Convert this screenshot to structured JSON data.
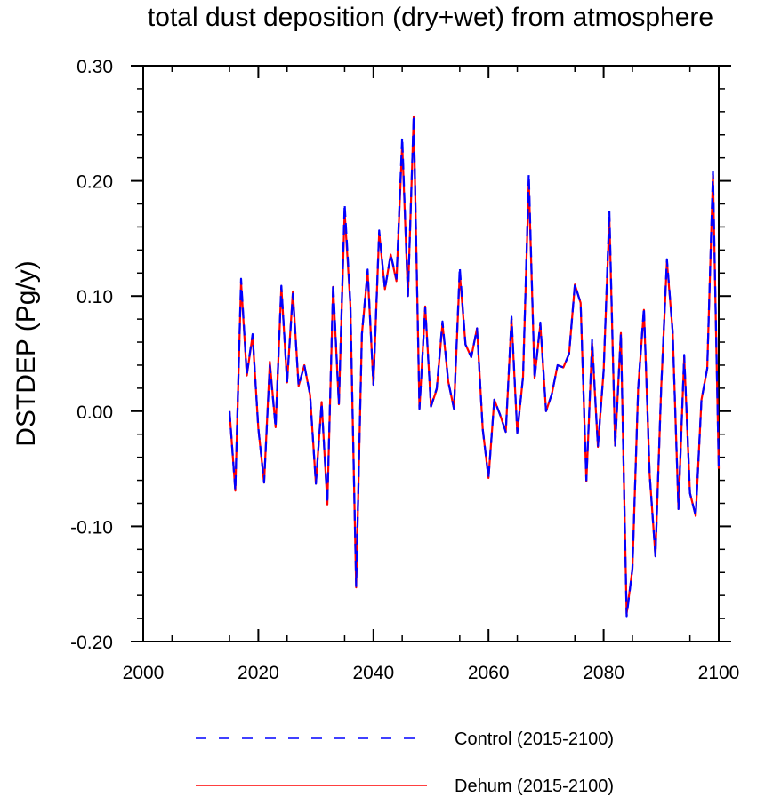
{
  "chart_data": {
    "type": "line",
    "title": "total dust deposition (dry+wet) from atmosphere",
    "xlabel": "",
    "ylabel": "DSTDEP  (Pg/y)",
    "xlim": [
      2000,
      2100
    ],
    "ylim": [
      -0.2,
      0.3
    ],
    "x_ticks": [
      2000,
      2020,
      2040,
      2060,
      2080,
      2100
    ],
    "x_tick_labels": [
      "2000",
      "2020",
      "2040",
      "2060",
      "2080",
      "2100"
    ],
    "y_ticks": [
      -0.2,
      -0.1,
      0.0,
      0.1,
      0.2,
      0.3
    ],
    "y_tick_labels": [
      "-0.20",
      "-0.10",
      "0.00",
      "0.10",
      "0.20",
      "0.30"
    ],
    "grid": false,
    "legend_position": "bottom",
    "x": [
      2015,
      2016,
      2017,
      2018,
      2019,
      2020,
      2021,
      2022,
      2023,
      2024,
      2025,
      2026,
      2027,
      2028,
      2029,
      2030,
      2031,
      2032,
      2033,
      2034,
      2035,
      2036,
      2037,
      2038,
      2039,
      2040,
      2041,
      2042,
      2043,
      2044,
      2045,
      2046,
      2047,
      2048,
      2049,
      2050,
      2051,
      2052,
      2053,
      2054,
      2055,
      2056,
      2057,
      2058,
      2059,
      2060,
      2061,
      2062,
      2063,
      2064,
      2065,
      2066,
      2067,
      2068,
      2069,
      2070,
      2071,
      2072,
      2073,
      2074,
      2075,
      2076,
      2077,
      2078,
      2079,
      2080,
      2081,
      2082,
      2083,
      2084,
      2085,
      2086,
      2087,
      2088,
      2089,
      2090,
      2091,
      2092,
      2093,
      2094,
      2095,
      2096,
      2097,
      2098,
      2099,
      2100
    ],
    "series": [
      {
        "name": "Control (2015-2100)",
        "color": "#0000ff",
        "dash": "dashed",
        "values": [
          0.0,
          -0.069,
          0.115,
          0.032,
          0.067,
          -0.015,
          -0.062,
          0.04,
          -0.014,
          0.109,
          0.025,
          0.102,
          0.022,
          0.04,
          0.014,
          -0.063,
          0.007,
          -0.08,
          0.111,
          0.006,
          0.18,
          0.094,
          -0.152,
          0.067,
          0.123,
          0.023,
          0.157,
          0.106,
          0.136,
          0.115,
          0.238,
          0.1,
          0.257,
          0.002,
          0.09,
          0.004,
          0.02,
          0.078,
          0.026,
          0.002,
          0.125,
          0.058,
          0.047,
          0.072,
          -0.016,
          -0.058,
          0.01,
          -0.003,
          -0.018,
          0.082,
          -0.019,
          0.03,
          0.206,
          0.028,
          0.077,
          0.0,
          0.015,
          0.04,
          0.038,
          0.05,
          0.11,
          0.094,
          -0.06,
          0.062,
          -0.031,
          0.035,
          0.174,
          -0.031,
          0.068,
          -0.178,
          -0.137,
          0.02,
          0.09,
          -0.055,
          -0.126,
          0.02,
          0.132,
          0.069,
          -0.085,
          0.049,
          -0.071,
          -0.091,
          0.01,
          0.037,
          0.208,
          -0.05
        ]
      },
      {
        "name": "Dehum (2015-2100)",
        "color": "#ff0000",
        "dash": "solid",
        "values": [
          0.0,
          -0.069,
          0.112,
          0.031,
          0.066,
          -0.015,
          -0.062,
          0.043,
          -0.014,
          0.108,
          0.025,
          0.104,
          0.022,
          0.04,
          0.014,
          -0.063,
          0.008,
          -0.081,
          0.108,
          0.006,
          0.173,
          0.092,
          -0.153,
          0.067,
          0.121,
          0.023,
          0.155,
          0.106,
          0.136,
          0.113,
          0.232,
          0.1,
          0.256,
          0.002,
          0.091,
          0.004,
          0.019,
          0.076,
          0.026,
          0.002,
          0.12,
          0.058,
          0.047,
          0.072,
          -0.016,
          -0.058,
          0.01,
          -0.003,
          -0.018,
          0.08,
          -0.019,
          0.03,
          0.2,
          0.029,
          0.075,
          0.0,
          0.015,
          0.04,
          0.038,
          0.05,
          0.11,
          0.094,
          -0.061,
          0.059,
          -0.031,
          0.035,
          0.168,
          -0.03,
          0.068,
          -0.176,
          -0.137,
          0.02,
          0.088,
          -0.055,
          -0.126,
          0.02,
          0.13,
          0.069,
          -0.085,
          0.047,
          -0.071,
          -0.091,
          0.01,
          0.037,
          0.205,
          -0.05
        ]
      }
    ]
  }
}
